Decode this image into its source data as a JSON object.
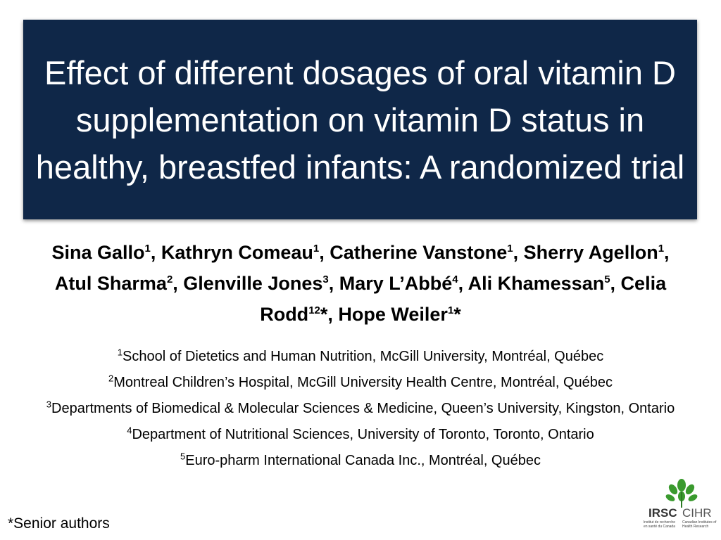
{
  "slide": {
    "title": "Effect of different dosages of oral vitamin D supplementation on vitamin D status in healthy, breastfed infants: A randomized trial",
    "authors": [
      {
        "text": "Sina Gallo",
        "sup": "1"
      },
      {
        "text": ", Kathryn Comeau",
        "sup": "1"
      },
      {
        "text": ", Catherine Vanstone",
        "sup": "1"
      },
      {
        "text": ", Sherry Agellon",
        "sup": "1"
      },
      {
        "text": ", Atul Sharma",
        "sup": "2"
      },
      {
        "text": ", Glenville Jones",
        "sup": "3"
      },
      {
        "text": ", Mary L’Abbé",
        "sup": "4"
      },
      {
        "text": ", Ali Khamessan",
        "sup": "5"
      },
      {
        "text": ", Celia Rodd",
        "sup": "12"
      },
      {
        "text": "*, Hope Weiler",
        "sup": "1"
      },
      {
        "text": "*"
      }
    ],
    "affiliations": [
      {
        "sup": "1",
        "text": "School of Dietetics and Human Nutrition, McGill University, Montréal, Québec"
      },
      {
        "sup": "2",
        "text": "Montreal Children’s Hospital, McGill University Health Centre, Montréal, Québec"
      },
      {
        "sup": "3",
        "text": "Departments of Biomedical & Molecular Sciences & Medicine, Queen’s University, Kingston, Ontario"
      },
      {
        "sup": "4",
        "text": "Department of Nutritional Sciences, University of Toronto, Toronto, Ontario"
      },
      {
        "sup": "5",
        "text": "Euro-pharm International Canada Inc., Montréal, Québec"
      }
    ],
    "footnote": "*Senior authors",
    "logo": {
      "irsc": "IRSC",
      "cihr": "CIHR",
      "fr": "Institut de recherche en santé du Canada",
      "en": "Canadian Institutes of Health Research"
    }
  }
}
